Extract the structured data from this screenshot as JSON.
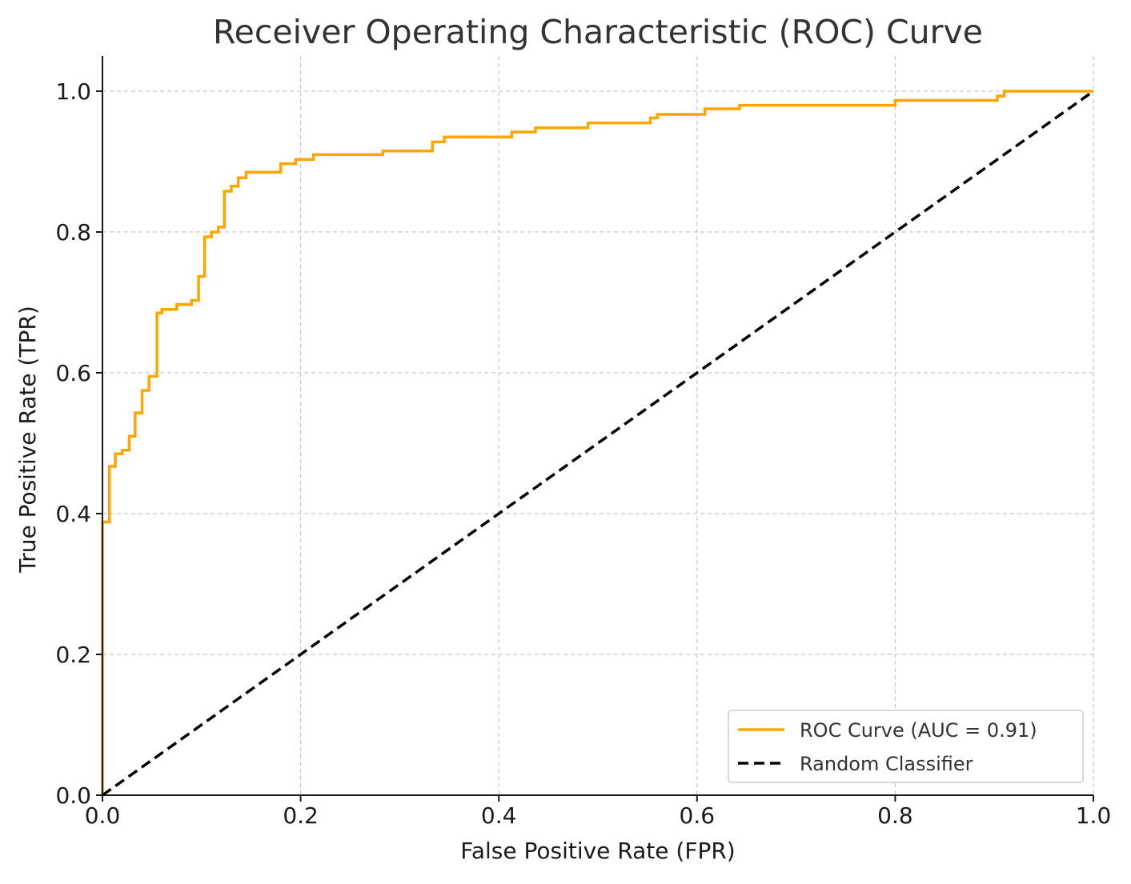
{
  "chart_data": {
    "type": "line",
    "title": "Receiver Operating Characteristic (ROC) Curve",
    "xlabel": "False Positive Rate (FPR)",
    "ylabel": "True Positive Rate (TPR)",
    "xlim": [
      0.0,
      1.0
    ],
    "ylim": [
      0.0,
      1.05
    ],
    "x_ticks": [
      0.0,
      0.2,
      0.4,
      0.6,
      0.8,
      1.0
    ],
    "x_tick_labels": [
      "0.0",
      "0.2",
      "0.4",
      "0.6",
      "0.8",
      "1.0"
    ],
    "y_ticks": [
      0.0,
      0.2,
      0.4,
      0.6,
      0.8,
      1.0
    ],
    "y_tick_labels": [
      "0.0",
      "0.2",
      "0.4",
      "0.6",
      "0.8",
      "1.0"
    ],
    "grid": true,
    "legend_position": "lower-right",
    "series": [
      {
        "name": "ROC Curve (AUC = 0.91)",
        "color": "#FFA500",
        "style": "solid",
        "x": [
          0.0,
          0.0,
          0.007,
          0.007,
          0.013,
          0.013,
          0.02,
          0.02,
          0.027,
          0.027,
          0.033,
          0.033,
          0.04,
          0.04,
          0.047,
          0.047,
          0.055,
          0.055,
          0.06,
          0.06,
          0.075,
          0.075,
          0.09,
          0.09,
          0.097,
          0.097,
          0.103,
          0.103,
          0.11,
          0.11,
          0.117,
          0.117,
          0.123,
          0.123,
          0.13,
          0.13,
          0.137,
          0.137,
          0.145,
          0.145,
          0.18,
          0.18,
          0.195,
          0.195,
          0.213,
          0.213,
          0.283,
          0.283,
          0.333,
          0.333,
          0.345,
          0.345,
          0.413,
          0.413,
          0.437,
          0.437,
          0.49,
          0.49,
          0.553,
          0.553,
          0.56,
          0.56,
          0.608,
          0.608,
          0.643,
          0.643,
          0.8,
          0.8,
          0.903,
          0.903,
          0.91,
          0.91,
          1.0
        ],
        "y": [
          0.0,
          0.388,
          0.388,
          0.467,
          0.467,
          0.485,
          0.485,
          0.49,
          0.49,
          0.51,
          0.51,
          0.543,
          0.543,
          0.575,
          0.575,
          0.595,
          0.595,
          0.685,
          0.685,
          0.69,
          0.69,
          0.697,
          0.697,
          0.703,
          0.703,
          0.737,
          0.737,
          0.793,
          0.793,
          0.8,
          0.8,
          0.807,
          0.807,
          0.858,
          0.858,
          0.865,
          0.865,
          0.877,
          0.877,
          0.885,
          0.885,
          0.897,
          0.897,
          0.903,
          0.903,
          0.91,
          0.91,
          0.915,
          0.915,
          0.928,
          0.928,
          0.935,
          0.935,
          0.942,
          0.942,
          0.948,
          0.948,
          0.955,
          0.955,
          0.962,
          0.962,
          0.967,
          0.967,
          0.975,
          0.975,
          0.98,
          0.98,
          0.987,
          0.987,
          0.993,
          0.993,
          1.0,
          1.0
        ]
      },
      {
        "name": "Random Classifier",
        "color": "#000000",
        "style": "dashed",
        "x": [
          0.0,
          1.0
        ],
        "y": [
          0.0,
          1.0
        ]
      }
    ]
  }
}
